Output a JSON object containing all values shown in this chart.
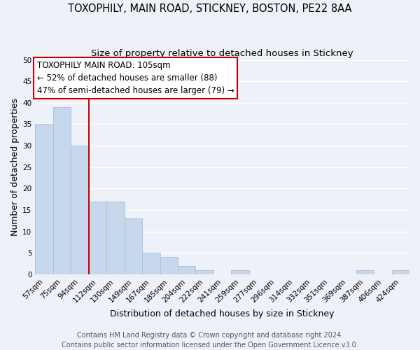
{
  "title": "TOXOPHILY, MAIN ROAD, STICKNEY, BOSTON, PE22 8AA",
  "subtitle": "Size of property relative to detached houses in Stickney",
  "xlabel": "Distribution of detached houses by size in Stickney",
  "ylabel": "Number of detached properties",
  "bins": [
    "57sqm",
    "75sqm",
    "94sqm",
    "112sqm",
    "130sqm",
    "149sqm",
    "167sqm",
    "185sqm",
    "204sqm",
    "222sqm",
    "241sqm",
    "259sqm",
    "277sqm",
    "296sqm",
    "314sqm",
    "332sqm",
    "351sqm",
    "369sqm",
    "387sqm",
    "406sqm",
    "424sqm"
  ],
  "values": [
    35,
    39,
    30,
    17,
    17,
    13,
    5,
    4,
    2,
    1,
    0,
    1,
    0,
    0,
    0,
    0,
    0,
    0,
    1,
    0,
    1
  ],
  "bar_color": "#c8d8ec",
  "bar_edge_color": "#aabfd8",
  "vline_x_index": 2.5,
  "vline_color": "#cc0000",
  "annotation_line1": "TOXOPHILY MAIN ROAD: 105sqm",
  "annotation_line2": "← 52% of detached houses are smaller (88)",
  "annotation_line3": "47% of semi-detached houses are larger (79) →",
  "ylim": [
    0,
    50
  ],
  "yticks": [
    0,
    5,
    10,
    15,
    20,
    25,
    30,
    35,
    40,
    45,
    50
  ],
  "footer_line1": "Contains HM Land Registry data © Crown copyright and database right 2024.",
  "footer_line2": "Contains public sector information licensed under the Open Government Licence v3.0.",
  "background_color": "#eef2f8",
  "grid_color": "#ffffff",
  "title_fontsize": 10.5,
  "subtitle_fontsize": 9.5,
  "axis_label_fontsize": 9,
  "tick_fontsize": 7.5,
  "annotation_fontsize": 8.5,
  "footer_fontsize": 7
}
